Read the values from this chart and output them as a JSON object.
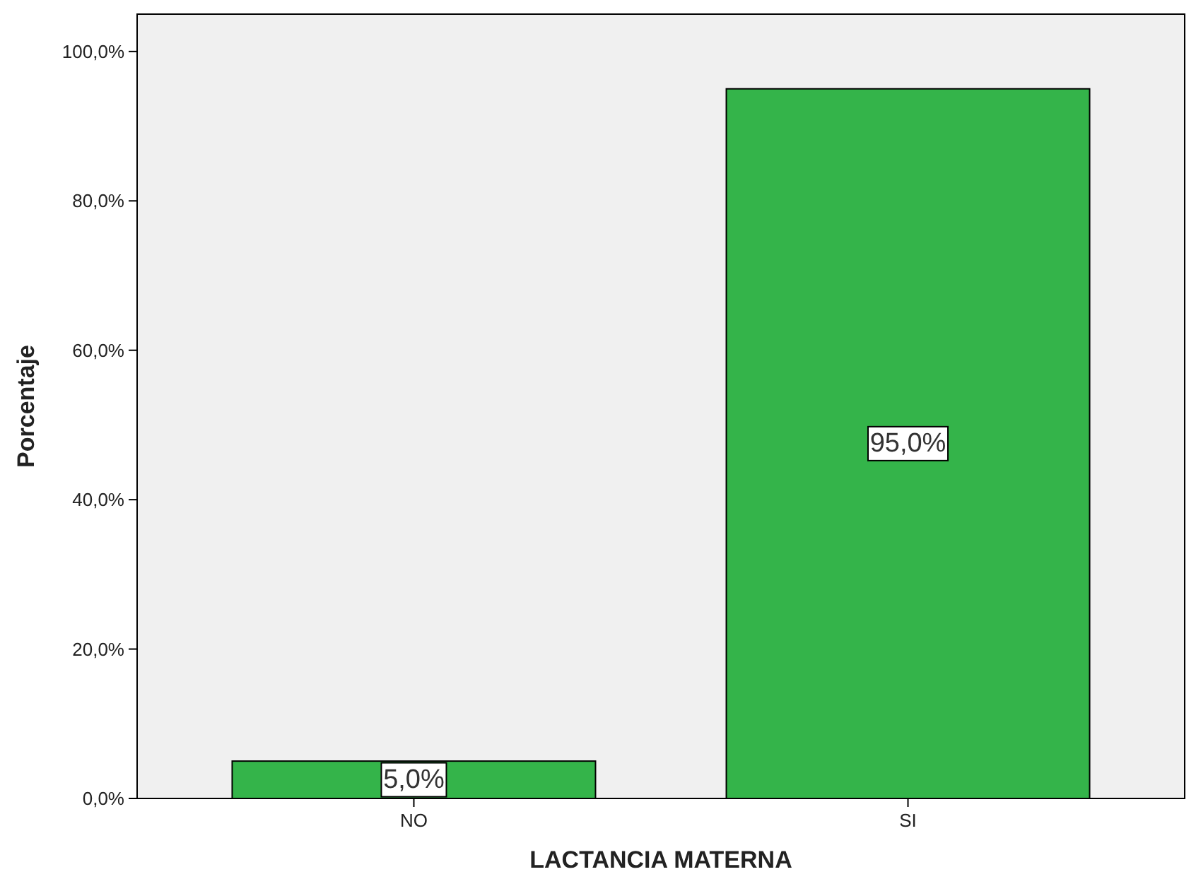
{
  "chart_data": {
    "type": "bar",
    "xlabel": "LACTANCIA MATERNA",
    "ylabel": "Porcentaje",
    "categories": [
      "NO",
      "SI"
    ],
    "values": [
      5.0,
      95.0
    ],
    "value_labels": [
      "5,0%",
      "95,0%"
    ],
    "color": "#34b44a",
    "ylim": [
      0,
      105
    ],
    "yticks": [
      {
        "value": 0,
        "label": "0,0%"
      },
      {
        "value": 20,
        "label": "20,0%"
      },
      {
        "value": 40,
        "label": "40,0%"
      },
      {
        "value": 60,
        "label": "60,0%"
      },
      {
        "value": 80,
        "label": "80,0%"
      },
      {
        "value": 100,
        "label": "100,0%"
      }
    ],
    "grid": false
  }
}
